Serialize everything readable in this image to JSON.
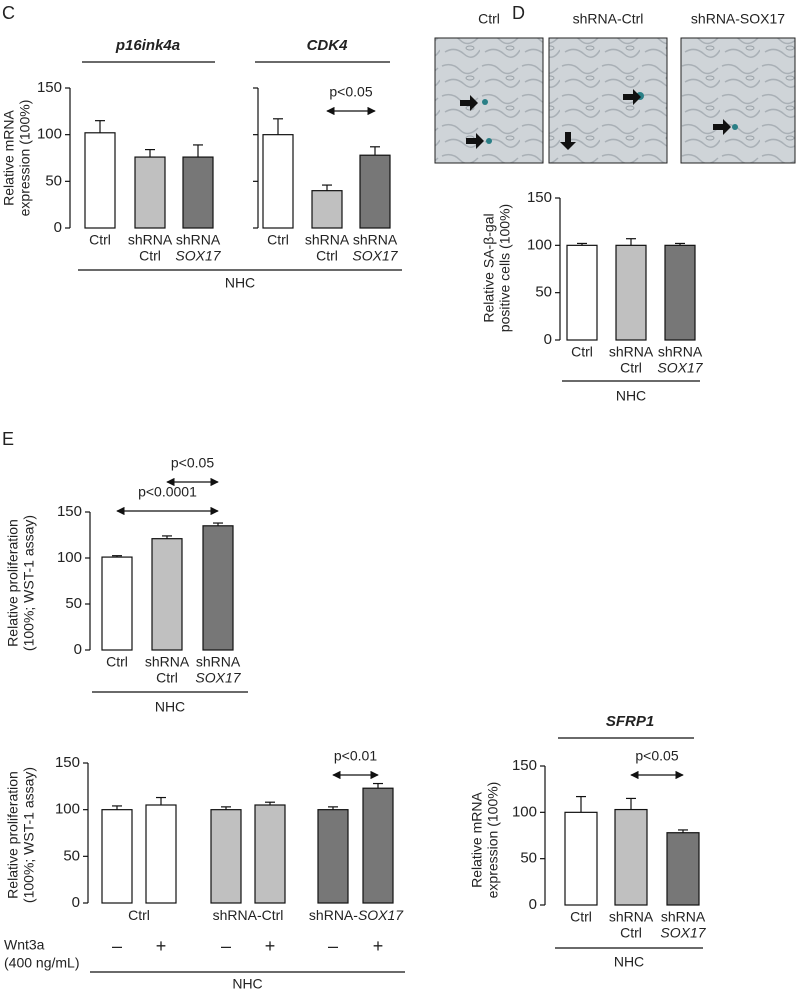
{
  "panels": [
    "C",
    "D",
    "E"
  ],
  "images": {
    "labels": [
      "Ctrl",
      "shRNA-Ctrl",
      "shRNA-SOX17"
    ]
  },
  "chart_data": [
    {
      "type": "bar",
      "y_label": [
        "Relative mRNA",
        "expression (100%)"
      ],
      "ylim": [
        0,
        150
      ],
      "yticks": [
        0,
        50,
        100,
        150
      ],
      "colors": [
        "#ffffff",
        "#c0c0c0",
        "#777777"
      ],
      "group_label": "NHC",
      "annotations": [
        "p<0.05"
      ],
      "subplots": [
        {
          "title": "p16ink4a",
          "categories": [
            [
              "Ctrl"
            ],
            [
              "shRNA",
              "Ctrl"
            ],
            [
              "shRNA",
              "SOX17"
            ]
          ],
          "values": [
            102,
            76,
            76
          ],
          "errors": [
            13,
            8,
            13
          ]
        },
        {
          "title": "CDK4",
          "categories": [
            [
              "Ctrl"
            ],
            [
              "shRNA",
              "Ctrl"
            ],
            [
              "shRNA",
              "SOX17"
            ]
          ],
          "values": [
            100,
            40,
            78
          ],
          "errors": [
            17,
            6,
            9
          ]
        }
      ]
    },
    {
      "type": "bar",
      "y_label": [
        "Relative SA-β-gal",
        "positive cells  (100%)"
      ],
      "ylim": [
        0,
        150
      ],
      "yticks": [
        0,
        50,
        100,
        150
      ],
      "colors": [
        "#ffffff",
        "#c0c0c0",
        "#777777"
      ],
      "group_label": "NHC",
      "annotations": [],
      "subplots": [
        {
          "categories": [
            [
              "Ctrl"
            ],
            [
              "shRNA",
              "Ctrl"
            ],
            [
              "shRNA",
              "SOX17"
            ]
          ],
          "values": [
            100,
            100,
            100
          ],
          "errors": [
            2,
            7,
            2
          ]
        }
      ]
    },
    {
      "type": "bar",
      "y_label": [
        "Relative proliferation",
        "(100%; WST-1 assay)"
      ],
      "ylim": [
        0,
        150
      ],
      "yticks": [
        0,
        50,
        100,
        150
      ],
      "colors": [
        "#ffffff",
        "#c0c0c0",
        "#777777"
      ],
      "group_label": "NHC",
      "annotations": [
        "p<0.05",
        "p<0.0001"
      ],
      "subplots": [
        {
          "categories": [
            [
              "Ctrl"
            ],
            [
              "shRNA",
              "Ctrl"
            ],
            [
              "shRNA",
              "SOX17"
            ]
          ],
          "values": [
            101,
            121,
            135
          ],
          "errors": [
            1.5,
            3,
            3
          ]
        }
      ]
    },
    {
      "type": "bar",
      "y_label": [
        "Relative proliferation",
        "(100%; WST-1 assay)"
      ],
      "ylim": [
        0,
        150
      ],
      "yticks": [
        0,
        50,
        100,
        150
      ],
      "colors": [
        "#ffffff",
        "#ffffff",
        "#c0c0c0",
        "#c0c0c0",
        "#777777",
        "#777777"
      ],
      "group_label": "NHC",
      "annotations": [
        "p<0.01"
      ],
      "group_labels": [
        [
          "Ctrl"
        ],
        [
          "shRNA-Ctrl"
        ],
        [
          "shRNA-",
          "SOX17"
        ]
      ],
      "treatment": {
        "label": [
          "Wnt3a",
          "(400 ng/mL)"
        ],
        "levels": [
          "–",
          "+"
        ]
      },
      "subplots": [
        {
          "values": [
            100,
            105,
            100,
            105,
            100,
            123
          ],
          "errors": [
            4,
            8,
            3,
            3,
            3,
            5
          ]
        }
      ]
    },
    {
      "type": "bar",
      "y_label": [
        "Relative mRNA",
        "expression (100%)"
      ],
      "ylim": [
        0,
        150
      ],
      "yticks": [
        0,
        50,
        100,
        150
      ],
      "colors": [
        "#ffffff",
        "#c0c0c0",
        "#777777"
      ],
      "group_label": "NHC",
      "annotations": [
        "p<0.05"
      ],
      "subplots": [
        {
          "title": "SFRP1",
          "categories": [
            [
              "Ctrl"
            ],
            [
              "shRNA",
              "Ctrl"
            ],
            [
              "shRNA",
              "SOX17"
            ]
          ],
          "values": [
            100,
            103,
            78
          ],
          "errors": [
            17,
            12,
            3
          ]
        }
      ]
    }
  ]
}
